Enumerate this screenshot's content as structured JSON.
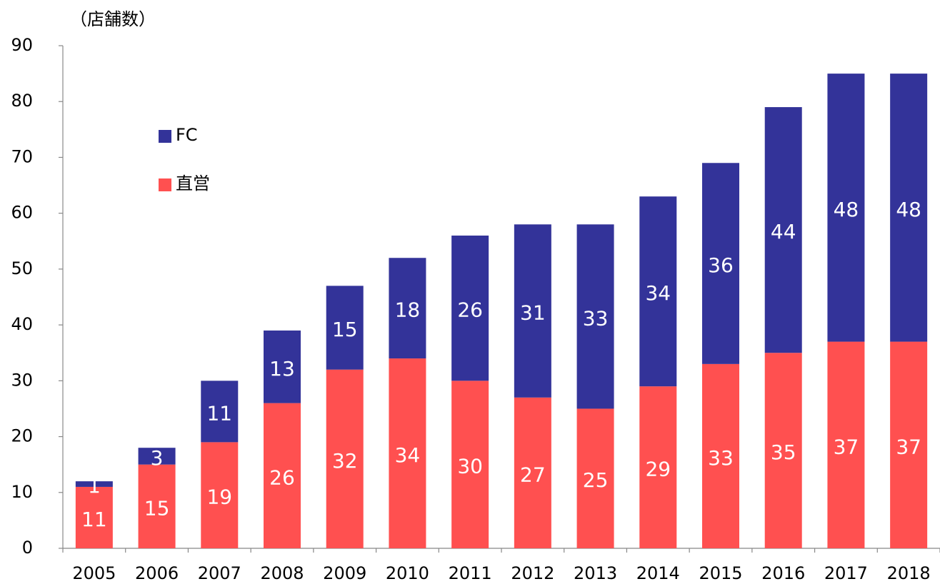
{
  "chart_data": {
    "type": "stacked_bar",
    "y_axis_label": "（店舗数）",
    "categories": [
      "2005",
      "2006",
      "2007",
      "2008",
      "2009",
      "2010",
      "2011",
      "2012",
      "2013",
      "2014",
      "2015",
      "2016",
      "2017",
      "2018"
    ],
    "series": [
      {
        "name": "直営",
        "color": "#ff5050",
        "values": [
          11,
          15,
          19,
          26,
          32,
          34,
          30,
          27,
          25,
          29,
          33,
          35,
          37,
          37
        ]
      },
      {
        "name": "FC",
        "color": "#333399",
        "values": [
          1,
          3,
          11,
          13,
          15,
          18,
          26,
          31,
          33,
          34,
          36,
          44,
          48,
          48
        ]
      }
    ],
    "ylim": [
      0,
      90
    ],
    "yticks": [
      0,
      10,
      20,
      30,
      40,
      50,
      60,
      70,
      80,
      90
    ]
  }
}
